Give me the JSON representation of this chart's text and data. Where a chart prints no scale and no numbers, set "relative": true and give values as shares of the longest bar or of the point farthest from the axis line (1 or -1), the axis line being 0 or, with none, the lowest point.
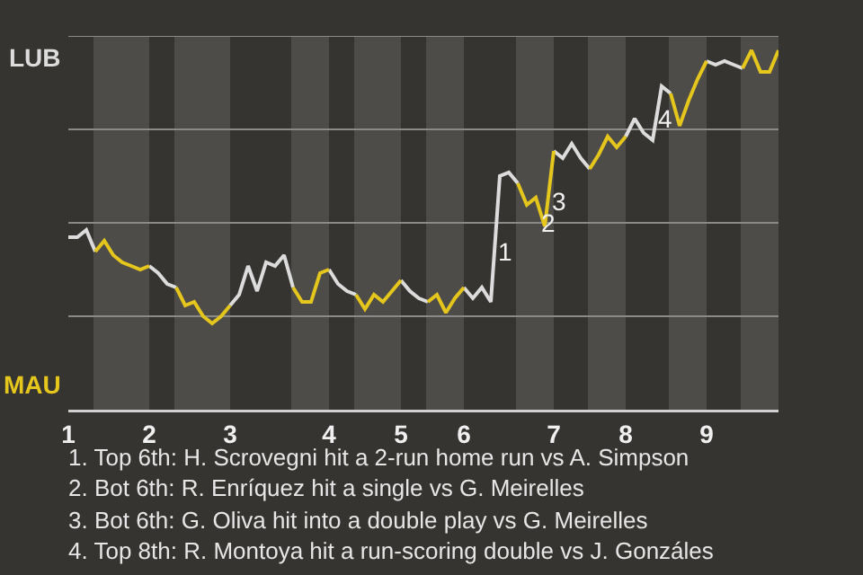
{
  "chart_data": {
    "type": "line",
    "categories": [
      "1",
      null,
      null,
      null,
      null,
      null,
      null,
      null,
      null,
      "2",
      null,
      null,
      null,
      null,
      null,
      null,
      null,
      null,
      "3",
      null,
      null,
      null,
      null,
      null,
      null,
      null,
      null,
      null,
      null,
      "4",
      null,
      null,
      null,
      null,
      null,
      null,
      null,
      "5",
      null,
      null,
      null,
      null,
      null,
      null,
      "6",
      null,
      null,
      null,
      null,
      null,
      null,
      null,
      null,
      null,
      "7",
      null,
      null,
      null,
      null,
      null,
      null,
      null,
      "8",
      null,
      null,
      null,
      null,
      null,
      null,
      null,
      null,
      "9",
      null,
      null,
      null,
      null,
      null,
      null,
      null,
      null
    ],
    "relative": true,
    "series": [
      {
        "color": "#dcdcdc",
        "values": [
          0.48,
          0.48,
          0.5,
          0.44,
          null,
          null,
          null,
          null,
          null,
          0.4,
          0.38,
          0.35,
          0.34,
          null,
          null,
          null,
          null,
          null,
          0.29,
          0.32,
          0.4,
          0.33,
          0.41,
          0.4,
          0.43,
          0.34,
          null,
          null,
          null,
          0.39,
          0.35,
          0.33,
          0.32,
          null,
          null,
          null,
          null,
          0.36,
          0.33,
          0.31,
          0.3,
          null,
          null,
          null,
          0.34,
          0.31,
          0.34,
          0.3,
          0.65,
          0.66,
          0.63,
          null,
          null,
          null,
          0.72,
          0.7,
          0.74,
          0.7,
          0.67,
          null,
          null,
          null,
          0.76,
          0.81,
          0.77,
          0.75,
          0.9,
          0.88,
          null,
          null,
          null,
          0.97,
          0.96,
          0.97,
          0.96,
          0.95,
          null,
          null,
          null,
          null
        ]
      },
      {
        "color": "#e5c61c",
        "values": [
          null,
          null,
          null,
          0.44,
          0.47,
          0.43,
          0.41,
          0.4,
          0.39,
          0.4,
          null,
          null,
          0.34,
          0.29,
          0.3,
          0.26,
          0.24,
          0.26,
          0.29,
          null,
          null,
          null,
          null,
          null,
          null,
          0.34,
          0.3,
          0.3,
          0.38,
          0.39,
          null,
          null,
          0.32,
          0.28,
          0.32,
          0.3,
          0.33,
          0.36,
          null,
          null,
          0.3,
          0.32,
          0.27,
          0.31,
          0.34,
          null,
          null,
          null,
          null,
          null,
          0.63,
          0.57,
          0.59,
          0.51,
          0.72,
          null,
          null,
          null,
          0.67,
          0.71,
          0.76,
          0.73,
          0.76,
          null,
          null,
          null,
          null,
          0.88,
          0.79,
          0.86,
          0.92,
          0.97,
          null,
          null,
          null,
          0.95,
          1,
          0.94,
          0.94,
          1
        ]
      }
    ],
    "marker": "none",
    "line_style": "solid",
    "ref_lines": [
      {
        "axis": "y",
        "value": 0.26,
        "color": "#8a8a8a"
      },
      {
        "axis": "y",
        "value": 0.52,
        "color": "#8a8a8a"
      },
      {
        "axis": "y",
        "value": 0.78,
        "color": "#8a8a8a"
      },
      {
        "axis": "y",
        "value": 1.04,
        "color": "#8a8a8a"
      }
    ],
    "annotations": [
      "LUB",
      "MAU",
      "1",
      "2",
      "3",
      "4",
      "1. Top 6th: H. Scrovegni hit a 2-run home run vs A. Simpson",
      "2. Bot 6th: R. Enríquez hit a single vs G. Meirelles",
      "3. Bot 6th: G. Oliva hit into a double play vs G. Meirelles",
      "4. Top 8th: R. Montoya hit a run-scoring double vs J. Gonzáles"
    ]
  }
}
